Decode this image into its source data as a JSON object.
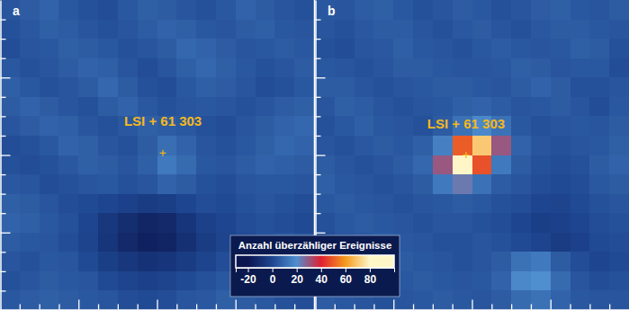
{
  "chart_data": [
    {
      "type": "heatmap",
      "title": "a",
      "xlim": [
        0,
        16
      ],
      "ylim": [
        0,
        16
      ],
      "xticks": [
        1,
        2,
        3,
        4,
        5,
        6,
        7,
        8,
        9,
        10,
        11,
        12,
        13,
        14,
        15
      ],
      "yticks": [
        1,
        2,
        3,
        4,
        5,
        6,
        7,
        8,
        9,
        10,
        11,
        12,
        13,
        14,
        15
      ],
      "tick_labels": false,
      "source": {
        "label": "LSI + 61 303",
        "x": 8.3,
        "y": 7.9
      },
      "cells": [
        [
          4,
          6,
          8,
          5,
          3,
          2,
          5,
          7,
          6,
          4,
          3,
          5,
          8,
          6,
          4,
          3
        ],
        [
          3,
          5,
          7,
          6,
          4,
          3,
          4,
          6,
          8,
          7,
          5,
          4,
          6,
          7,
          5,
          4
        ],
        [
          2,
          4,
          5,
          7,
          6,
          5,
          3,
          4,
          6,
          9,
          8,
          6,
          4,
          5,
          6,
          5
        ],
        [
          5,
          3,
          4,
          6,
          8,
          7,
          4,
          2,
          4,
          7,
          9,
          7,
          5,
          3,
          4,
          6
        ],
        [
          7,
          5,
          3,
          4,
          6,
          9,
          6,
          3,
          2,
          5,
          7,
          6,
          4,
          2,
          3,
          5
        ],
        [
          6,
          8,
          6,
          4,
          3,
          6,
          8,
          5,
          3,
          4,
          5,
          4,
          3,
          4,
          6,
          7
        ],
        [
          4,
          6,
          8,
          7,
          4,
          3,
          5,
          7,
          6,
          5,
          3,
          2,
          4,
          6,
          8,
          9
        ],
        [
          2,
          3,
          5,
          8,
          7,
          4,
          3,
          6,
          11,
          8,
          4,
          3,
          5,
          7,
          9,
          8
        ],
        [
          3,
          2,
          3,
          5,
          7,
          6,
          4,
          7,
          14,
          10,
          5,
          4,
          6,
          8,
          7,
          6
        ],
        [
          5,
          4,
          2,
          3,
          4,
          5,
          3,
          4,
          8,
          6,
          3,
          2,
          4,
          5,
          5,
          4
        ],
        [
          7,
          6,
          4,
          2,
          1,
          0,
          -2,
          -4,
          -3,
          0,
          2,
          1,
          3,
          4,
          3,
          2
        ],
        [
          8,
          7,
          5,
          3,
          0,
          -6,
          -10,
          -13,
          -12,
          -7,
          -2,
          0,
          2,
          3,
          2,
          1
        ],
        [
          6,
          5,
          4,
          2,
          -1,
          -7,
          -12,
          -15,
          -14,
          -9,
          -4,
          -1,
          1,
          3,
          4,
          3
        ],
        [
          4,
          3,
          5,
          4,
          1,
          -3,
          -6,
          -8,
          -7,
          -4,
          -1,
          2,
          4,
          5,
          5,
          4
        ],
        [
          3,
          4,
          6,
          5,
          4,
          1,
          -1,
          -2,
          -1,
          1,
          3,
          5,
          6,
          6,
          4,
          3
        ],
        [
          5,
          6,
          7,
          6,
          5,
          4,
          2,
          1,
          2,
          4,
          5,
          7,
          6,
          5,
          3,
          2
        ]
      ]
    },
    {
      "type": "heatmap",
      "title": "b",
      "xlim": [
        0,
        16
      ],
      "ylim": [
        0,
        16
      ],
      "xticks": [
        1,
        2,
        3,
        4,
        5,
        6,
        7,
        8,
        9,
        10,
        11,
        12,
        13,
        14,
        15
      ],
      "yticks": [
        1,
        2,
        3,
        4,
        5,
        6,
        7,
        8,
        9,
        10,
        11,
        12,
        13,
        14,
        15
      ],
      "tick_labels": false,
      "source": {
        "label": "LSI + 61 303",
        "x": 7.7,
        "y": 8.0
      },
      "cells": [
        [
          5,
          4,
          6,
          7,
          5,
          3,
          4,
          6,
          5,
          3,
          4,
          6,
          7,
          5,
          4,
          6
        ],
        [
          4,
          3,
          5,
          6,
          6,
          4,
          3,
          5,
          6,
          4,
          3,
          5,
          6,
          6,
          5,
          4
        ],
        [
          3,
          2,
          4,
          5,
          7,
          5,
          4,
          3,
          5,
          6,
          5,
          4,
          5,
          7,
          6,
          3
        ],
        [
          5,
          4,
          3,
          4,
          6,
          6,
          5,
          4,
          4,
          5,
          7,
          6,
          4,
          5,
          5,
          2
        ],
        [
          6,
          6,
          4,
          3,
          4,
          5,
          6,
          6,
          5,
          4,
          6,
          8,
          6,
          3,
          3,
          4
        ],
        [
          4,
          7,
          6,
          4,
          3,
          4,
          5,
          7,
          8,
          6,
          4,
          5,
          6,
          4,
          2,
          5
        ],
        [
          3,
          5,
          7,
          5,
          4,
          3,
          6,
          12,
          18,
          12,
          5,
          3,
          4,
          5,
          4,
          6
        ],
        [
          4,
          3,
          5,
          6,
          5,
          7,
          16,
          50,
          70,
          30,
          8,
          4,
          3,
          4,
          5,
          7
        ],
        [
          6,
          4,
          3,
          4,
          6,
          9,
          30,
          85,
          48,
          14,
          6,
          3,
          2,
          3,
          6,
          8
        ],
        [
          7,
          5,
          4,
          3,
          4,
          6,
          14,
          24,
          12,
          6,
          4,
          2,
          1,
          2,
          5,
          6
        ],
        [
          5,
          6,
          5,
          4,
          3,
          4,
          5,
          6,
          5,
          3,
          2,
          0,
          -1,
          1,
          3,
          4
        ],
        [
          3,
          5,
          6,
          5,
          4,
          3,
          4,
          4,
          3,
          2,
          0,
          -3,
          -2,
          0,
          2,
          3
        ],
        [
          2,
          4,
          5,
          6,
          5,
          4,
          3,
          3,
          4,
          3,
          1,
          -1,
          -4,
          -2,
          1,
          2
        ],
        [
          4,
          3,
          4,
          5,
          6,
          5,
          4,
          3,
          4,
          6,
          12,
          14,
          6,
          2,
          0,
          1
        ],
        [
          5,
          4,
          3,
          4,
          5,
          6,
          5,
          4,
          5,
          8,
          18,
          20,
          10,
          4,
          2,
          3
        ],
        [
          6,
          5,
          4,
          3,
          4,
          5,
          6,
          5,
          4,
          6,
          10,
          12,
          8,
          5,
          4,
          4
        ]
      ]
    }
  ],
  "color_bar": {
    "title": "Anzahl überzähliger Ereignisse",
    "range": [
      -30,
      100
    ],
    "ticks": [
      -20,
      0,
      20,
      40,
      60,
      80
    ]
  }
}
